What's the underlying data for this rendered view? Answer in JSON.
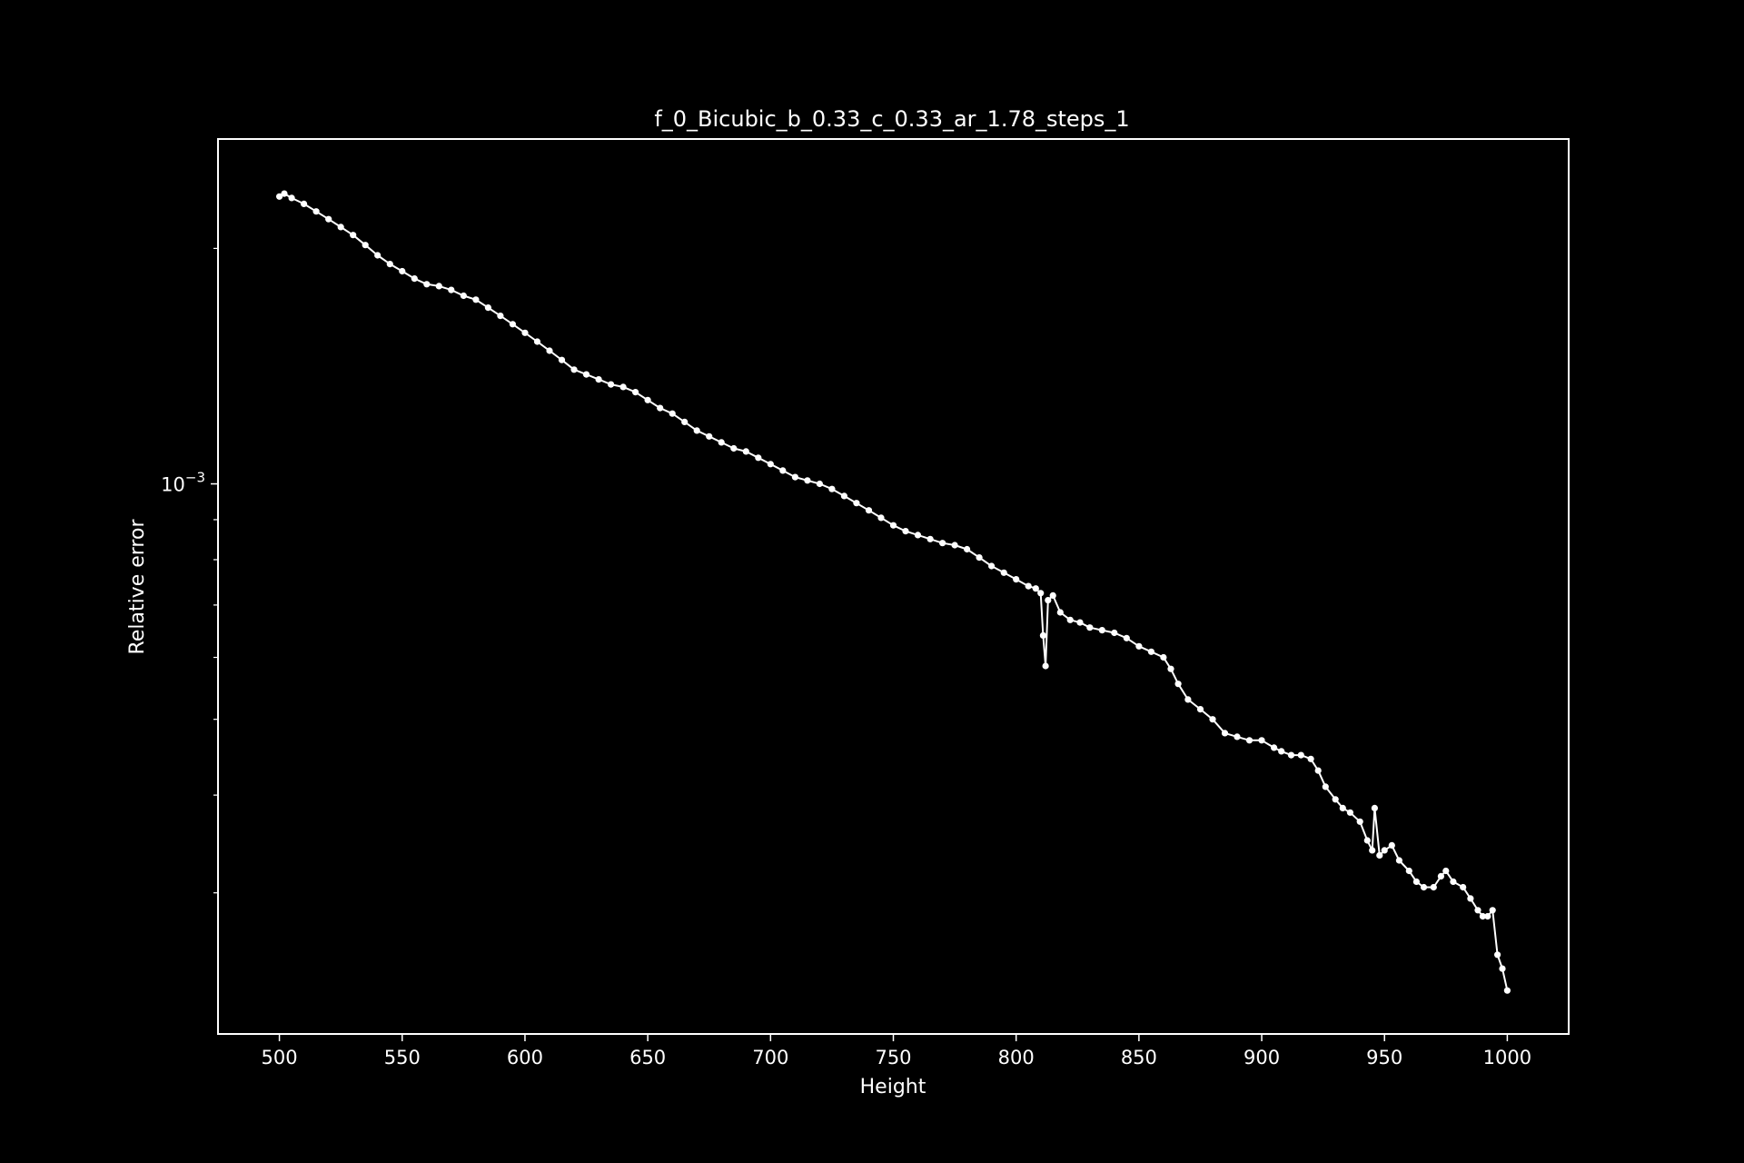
{
  "chart_data": {
    "type": "line",
    "title": "f_0_Bicubic_b_0.33_c_0.33_ar_1.78_steps_1",
    "xlabel": "Height",
    "ylabel": "Relative error",
    "xlim": [
      475,
      1025
    ],
    "ylim": [
      0.000198,
      0.00276
    ],
    "yscale": "log",
    "xticks": [
      500,
      550,
      600,
      650,
      700,
      750,
      800,
      850,
      900,
      950,
      1000
    ],
    "xtick_labels": [
      "500",
      "550",
      "600",
      "650",
      "700",
      "750",
      "800",
      "850",
      "900",
      "950",
      "1000"
    ],
    "yticks_major": [
      0.001
    ],
    "ytick_labels": [
      {
        "base": "10",
        "exp": "−3"
      }
    ],
    "yticks_minor": [
      0.0003,
      0.0004,
      0.0005,
      0.0006,
      0.0007,
      0.0008,
      0.0009,
      0.002
    ],
    "grid": false,
    "legend": "none",
    "colors": {
      "background": "#000000",
      "foreground": "#ffffff",
      "line": "#ffffff"
    },
    "series": [
      {
        "marker": "circle",
        "x": [
          500,
          502,
          505,
          510,
          515,
          520,
          525,
          530,
          535,
          540,
          545,
          550,
          555,
          560,
          565,
          570,
          575,
          580,
          585,
          590,
          595,
          600,
          605,
          610,
          615,
          620,
          625,
          630,
          635,
          640,
          645,
          650,
          655,
          660,
          665,
          670,
          675,
          680,
          685,
          690,
          695,
          700,
          705,
          710,
          715,
          720,
          725,
          730,
          735,
          740,
          745,
          750,
          755,
          760,
          765,
          770,
          775,
          780,
          785,
          790,
          795,
          800,
          805,
          808,
          810,
          811,
          812,
          813,
          815,
          818,
          822,
          826,
          830,
          835,
          840,
          845,
          850,
          855,
          860,
          863,
          866,
          870,
          875,
          880,
          885,
          890,
          895,
          900,
          905,
          908,
          912,
          916,
          920,
          923,
          926,
          930,
          933,
          936,
          940,
          943,
          945,
          946,
          948,
          950,
          953,
          956,
          960,
          963,
          966,
          970,
          973,
          975,
          978,
          982,
          985,
          988,
          990,
          992,
          994,
          996,
          998,
          1000
        ],
        "y": [
          0.00233,
          0.00235,
          0.00232,
          0.00228,
          0.00223,
          0.00218,
          0.00213,
          0.00208,
          0.00202,
          0.00196,
          0.00191,
          0.00187,
          0.00183,
          0.0018,
          0.00179,
          0.00177,
          0.00174,
          0.00172,
          0.00168,
          0.00164,
          0.0016,
          0.00156,
          0.00152,
          0.00148,
          0.00144,
          0.0014,
          0.00138,
          0.00136,
          0.00134,
          0.00133,
          0.00131,
          0.00128,
          0.00125,
          0.00123,
          0.0012,
          0.00117,
          0.00115,
          0.00113,
          0.00111,
          0.0011,
          0.00108,
          0.00106,
          0.00104,
          0.00102,
          0.00101,
          0.001,
          0.000985,
          0.000965,
          0.000945,
          0.000925,
          0.000905,
          0.000885,
          0.00087,
          0.00086,
          0.00085,
          0.00084,
          0.000835,
          0.000825,
          0.000805,
          0.000785,
          0.00077,
          0.000755,
          0.00074,
          0.000735,
          0.000725,
          0.00064,
          0.000585,
          0.00071,
          0.00072,
          0.000685,
          0.00067,
          0.000665,
          0.000655,
          0.00065,
          0.000645,
          0.000635,
          0.00062,
          0.00061,
          0.0006,
          0.00058,
          0.000555,
          0.00053,
          0.000515,
          0.0005,
          0.00048,
          0.000475,
          0.00047,
          0.00047,
          0.00046,
          0.000455,
          0.00045,
          0.00045,
          0.000445,
          0.00043,
          0.00041,
          0.000395,
          0.000385,
          0.00038,
          0.00037,
          0.00035,
          0.00034,
          0.000385,
          0.000335,
          0.00034,
          0.000345,
          0.00033,
          0.00032,
          0.00031,
          0.000305,
          0.000305,
          0.000315,
          0.00032,
          0.00031,
          0.000305,
          0.000295,
          0.000285,
          0.00028,
          0.00028,
          0.000285,
          0.00025,
          0.00024,
          0.000225
        ]
      }
    ]
  }
}
